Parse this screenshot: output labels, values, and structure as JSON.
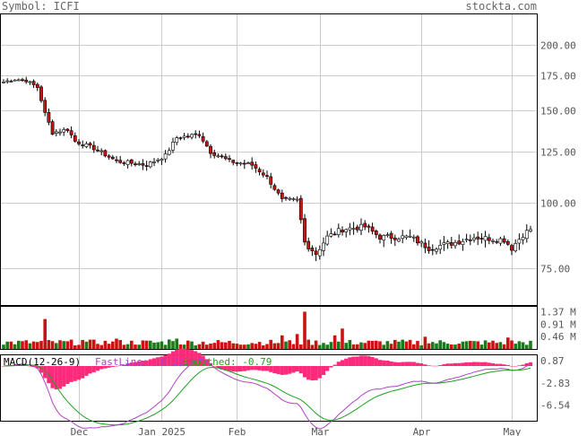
{
  "header": {
    "symbol_text": "Symbol: ICFI",
    "brand": "stockta.com"
  },
  "colors": {
    "up": "#1a7a1a",
    "down": "#cc1111",
    "wick": "#000000",
    "grid": "#cccccc",
    "macd_hist": "#ff2a7a",
    "fast": "#b040c8",
    "smooth": "#20a020"
  },
  "chart_data": {
    "type": "candlestick",
    "price_axis": {
      "ticks": [
        200,
        175,
        150,
        125,
        100,
        75
      ],
      "tick_labels": [
        "200.00",
        "175.00",
        "150.00",
        "125.00",
        "100.00",
        "75.00"
      ],
      "scale": "log"
    },
    "x_axis_labels": [
      "Dec",
      "Jan 2025",
      "Feb",
      "Mar",
      "Apr",
      "May"
    ],
    "volume_axis": {
      "tick_labels": [
        "1.37 M",
        "0.91 M",
        "0.46 M"
      ]
    },
    "macd": {
      "title": "MACD(12-26-9)",
      "fast_label": "FastLine: -0.22",
      "smooth_label": "Smoothed: -0.79",
      "tick_labels": [
        "0.87",
        "-2.83",
        "-6.54"
      ]
    },
    "price_anchors": [
      {
        "i": 0,
        "p": 170
      },
      {
        "i": 3,
        "p": 172
      },
      {
        "i": 6,
        "p": 171
      },
      {
        "i": 9,
        "p": 166
      },
      {
        "i": 11,
        "p": 148
      },
      {
        "i": 13,
        "p": 136
      },
      {
        "i": 17,
        "p": 138
      },
      {
        "i": 19,
        "p": 131
      },
      {
        "i": 24,
        "p": 127
      },
      {
        "i": 30,
        "p": 120
      },
      {
        "i": 38,
        "p": 118
      },
      {
        "i": 43,
        "p": 123
      },
      {
        "i": 46,
        "p": 133
      },
      {
        "i": 52,
        "p": 135
      },
      {
        "i": 55,
        "p": 125
      },
      {
        "i": 60,
        "p": 120
      },
      {
        "i": 66,
        "p": 118
      },
      {
        "i": 70,
        "p": 112
      },
      {
        "i": 74,
        "p": 101
      },
      {
        "i": 78,
        "p": 101
      },
      {
        "i": 80,
        "p": 84
      },
      {
        "i": 83,
        "p": 80
      },
      {
        "i": 86,
        "p": 86
      },
      {
        "i": 90,
        "p": 89
      },
      {
        "i": 96,
        "p": 90
      },
      {
        "i": 100,
        "p": 86
      },
      {
        "i": 108,
        "p": 86
      },
      {
        "i": 113,
        "p": 82
      },
      {
        "i": 120,
        "p": 84
      },
      {
        "i": 125,
        "p": 86
      },
      {
        "i": 133,
        "p": 85
      },
      {
        "i": 135,
        "p": 82
      },
      {
        "i": 138,
        "p": 87
      },
      {
        "i": 140,
        "p": 89
      }
    ],
    "volume_spikes": [
      {
        "i": 11,
        "v": 1.1
      },
      {
        "i": 80,
        "v": 1.37
      },
      {
        "i": 78,
        "v": 0.55
      },
      {
        "i": 74,
        "v": 0.5
      },
      {
        "i": 90,
        "v": 0.75
      },
      {
        "i": 88,
        "v": 0.5
      },
      {
        "i": 112,
        "v": 0.45
      },
      {
        "i": 134,
        "v": 0.42
      },
      {
        "i": 44,
        "v": 0.35
      },
      {
        "i": 30,
        "v": 0.38
      },
      {
        "i": 21,
        "v": 0.33
      },
      {
        "i": 46,
        "v": 0.38
      }
    ],
    "volume_base": 0.24,
    "candle_count": 141
  }
}
